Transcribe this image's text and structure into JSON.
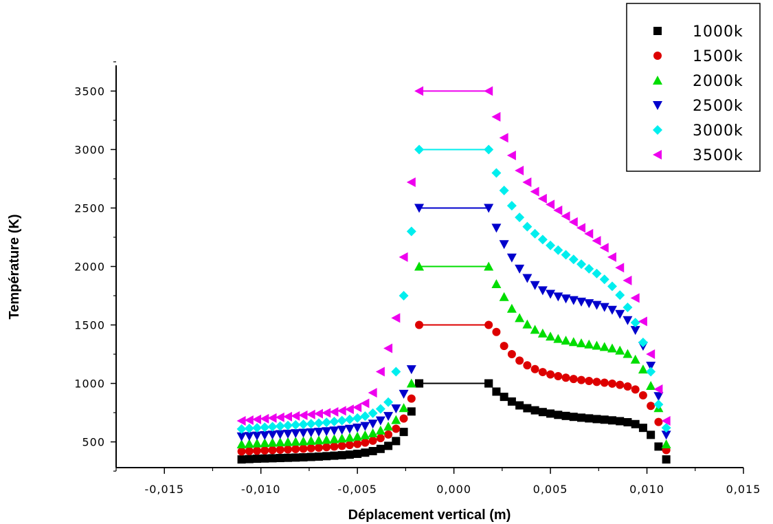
{
  "chart_data": {
    "type": "scatter",
    "title": "",
    "xlabel": "Déplacement vertical (m)",
    "ylabel": "Température (K)",
    "xlim": [
      -0.0175,
      0.015
    ],
    "ylim": [
      280,
      3720
    ],
    "x_ticks": [
      -0.015,
      -0.01,
      -0.005,
      0.0,
      0.005,
      0.01,
      0.015
    ],
    "x_tick_labels": [
      "-0,015",
      "-0,010",
      "-0,005",
      "0,000",
      "0,005",
      "0,010",
      "0,015"
    ],
    "y_ticks": [
      500,
      1000,
      1500,
      2000,
      2500,
      3000,
      3500
    ],
    "y_tick_labels": [
      "500",
      "1000",
      "1500",
      "2000",
      "2500",
      "3000",
      "3500"
    ],
    "grid": false,
    "legend_position": "top-right",
    "series": [
      {
        "name": "1000k",
        "marker": "square",
        "color": "#000000",
        "x": [
          -0.011,
          -0.0106,
          -0.0102,
          -0.0098,
          -0.0094,
          -0.009,
          -0.0086,
          -0.0082,
          -0.0078,
          -0.0074,
          -0.007,
          -0.0066,
          -0.0062,
          -0.0058,
          -0.0054,
          -0.005,
          -0.0046,
          -0.0042,
          -0.0038,
          -0.0034,
          -0.003,
          -0.0026,
          -0.0022,
          -0.0018,
          0.0018,
          0.0022,
          0.0026,
          0.003,
          0.0034,
          0.0038,
          0.0042,
          0.0046,
          0.005,
          0.0054,
          0.0058,
          0.0062,
          0.0066,
          0.007,
          0.0074,
          0.0078,
          0.0082,
          0.0086,
          0.009,
          0.0094,
          0.0098,
          0.0102,
          0.0106,
          0.011
        ],
        "y": [
          350,
          353,
          356,
          358,
          360,
          362,
          364,
          366,
          368,
          371,
          374,
          378,
          382,
          386,
          391,
          398,
          408,
          421,
          440,
          466,
          507,
          585,
          760,
          1000,
          1000,
          930,
          885,
          845,
          812,
          788,
          770,
          755,
          742,
          731,
          722,
          714,
          707,
          701,
          695,
          690,
          684,
          677,
          668,
          652,
          620,
          560,
          460,
          350
        ]
      },
      {
        "name": "1500k",
        "marker": "circle",
        "color": "#dd0000",
        "x": [
          -0.011,
          -0.0106,
          -0.0102,
          -0.0098,
          -0.0094,
          -0.009,
          -0.0086,
          -0.0082,
          -0.0078,
          -0.0074,
          -0.007,
          -0.0066,
          -0.0062,
          -0.0058,
          -0.0054,
          -0.005,
          -0.0046,
          -0.0042,
          -0.0038,
          -0.0034,
          -0.003,
          -0.0026,
          -0.0022,
          0.0022,
          0.0026,
          0.003,
          0.0034,
          0.0038,
          0.0042,
          0.0046,
          0.005,
          0.0054,
          0.0058,
          0.0062,
          0.0066,
          0.007,
          0.0074,
          0.0078,
          0.0082,
          0.0086,
          0.009,
          0.0094,
          0.0098,
          0.0102,
          0.0106,
          0.011
        ],
        "y": [
          418,
          421,
          424,
          427,
          430,
          433,
          436,
          439,
          442,
          446,
          450,
          455,
          460,
          466,
          473,
          482,
          494,
          510,
          532,
          563,
          612,
          700,
          870,
          1440,
          1320,
          1250,
          1195,
          1155,
          1122,
          1097,
          1077,
          1062,
          1049,
          1038,
          1029,
          1021,
          1013,
          1006,
          998,
          988,
          974,
          948,
          898,
          808,
          670,
          430
        ]
      },
      {
        "name": "2000k",
        "marker": "triangle-up",
        "color": "#00dd00",
        "x": [
          -0.011,
          -0.0106,
          -0.0102,
          -0.0098,
          -0.0094,
          -0.009,
          -0.0086,
          -0.0082,
          -0.0078,
          -0.0074,
          -0.007,
          -0.0066,
          -0.0062,
          -0.0058,
          -0.0054,
          -0.005,
          -0.0046,
          -0.0042,
          -0.0038,
          -0.0034,
          -0.003,
          -0.0026,
          -0.0022,
          0.0022,
          0.0026,
          0.003,
          0.0034,
          0.0038,
          0.0042,
          0.0046,
          0.005,
          0.0054,
          0.0058,
          0.0062,
          0.0066,
          0.007,
          0.0074,
          0.0078,
          0.0082,
          0.0086,
          0.009,
          0.0094,
          0.0098,
          0.0102,
          0.0106,
          0.011
        ],
        "y": [
          480,
          484,
          488,
          491,
          494,
          497,
          500,
          503,
          506,
          510,
          514,
          519,
          524,
          530,
          537,
          546,
          558,
          575,
          598,
          632,
          688,
          790,
          1000,
          1850,
          1740,
          1640,
          1560,
          1505,
          1460,
          1428,
          1402,
          1382,
          1367,
          1355,
          1344,
          1334,
          1324,
          1313,
          1300,
          1282,
          1253,
          1205,
          1120,
          980,
          790,
          480
        ]
      },
      {
        "name": "2500k",
        "marker": "triangle-down",
        "color": "#0000cc",
        "x": [
          -0.011,
          -0.0106,
          -0.0102,
          -0.0098,
          -0.0094,
          -0.009,
          -0.0086,
          -0.0082,
          -0.0078,
          -0.0074,
          -0.007,
          -0.0066,
          -0.0062,
          -0.0058,
          -0.0054,
          -0.005,
          -0.0046,
          -0.0042,
          -0.0038,
          -0.0034,
          -0.003,
          -0.0026,
          -0.0022,
          0.0022,
          0.0026,
          0.003,
          0.0034,
          0.0038,
          0.0042,
          0.0046,
          0.005,
          0.0054,
          0.0058,
          0.0062,
          0.0066,
          0.007,
          0.0074,
          0.0078,
          0.0082,
          0.0086,
          0.009,
          0.0094,
          0.0098,
          0.0102,
          0.0106,
          0.011
        ],
        "y": [
          545,
          549,
          553,
          557,
          561,
          565,
          569,
          573,
          577,
          581,
          585,
          590,
          596,
          603,
          611,
          621,
          635,
          655,
          682,
          720,
          785,
          910,
          1120,
          2330,
          2190,
          2075,
          1980,
          1900,
          1840,
          1795,
          1765,
          1742,
          1725,
          1711,
          1698,
          1685,
          1670,
          1652,
          1628,
          1593,
          1540,
          1455,
          1320,
          1150,
          890,
          560
        ]
      },
      {
        "name": "3000k",
        "marker": "diamond",
        "color": "#00eeee",
        "x": [
          -0.011,
          -0.0106,
          -0.0102,
          -0.0098,
          -0.0094,
          -0.009,
          -0.0086,
          -0.0082,
          -0.0078,
          -0.0074,
          -0.007,
          -0.0066,
          -0.0062,
          -0.0058,
          -0.0054,
          -0.005,
          -0.0046,
          -0.0042,
          -0.0038,
          -0.0034,
          -0.003,
          -0.0026,
          -0.0022,
          0.0022,
          0.0026,
          0.003,
          0.0034,
          0.0038,
          0.0042,
          0.0046,
          0.005,
          0.0054,
          0.0058,
          0.0062,
          0.0066,
          0.007,
          0.0074,
          0.0078,
          0.0082,
          0.0086,
          0.009,
          0.0094,
          0.0098,
          0.0102,
          0.0106,
          0.011
        ],
        "y": [
          610,
          615,
          620,
          625,
          630,
          635,
          640,
          645,
          650,
          655,
          661,
          667,
          674,
          682,
          692,
          704,
          720,
          745,
          782,
          840,
          1100,
          1750,
          2300,
          2800,
          2650,
          2520,
          2420,
          2340,
          2280,
          2230,
          2180,
          2140,
          2100,
          2060,
          2020,
          1980,
          1940,
          1890,
          1830,
          1755,
          1650,
          1520,
          1350,
          1100,
          820,
          620
        ]
      },
      {
        "name": "3500k",
        "marker": "triangle-left",
        "color": "#ee00ee",
        "x": [
          -0.011,
          -0.0106,
          -0.0102,
          -0.0098,
          -0.0094,
          -0.009,
          -0.0086,
          -0.0082,
          -0.0078,
          -0.0074,
          -0.007,
          -0.0066,
          -0.0062,
          -0.0058,
          -0.0054,
          -0.005,
          -0.0046,
          -0.0042,
          -0.0038,
          -0.0034,
          -0.003,
          -0.0026,
          -0.0022,
          0.0022,
          0.0026,
          0.003,
          0.0034,
          0.0038,
          0.0042,
          0.0046,
          0.005,
          0.0054,
          0.0058,
          0.0062,
          0.0066,
          0.007,
          0.0074,
          0.0078,
          0.0082,
          0.0086,
          0.009,
          0.0094,
          0.0098,
          0.0102,
          0.0106,
          0.011
        ],
        "y": [
          680,
          686,
          692,
          698,
          704,
          710,
          716,
          722,
          728,
          734,
          741,
          748,
          756,
          766,
          778,
          795,
          830,
          920,
          1100,
          1300,
          1560,
          2080,
          2720,
          3280,
          3100,
          2950,
          2820,
          2720,
          2640,
          2580,
          2530,
          2480,
          2430,
          2380,
          2330,
          2280,
          2220,
          2160,
          2080,
          1990,
          1880,
          1730,
          1530,
          1250,
          950,
          680
        ]
      }
    ],
    "plateaus": [
      {
        "series": "1000k",
        "x": [
          -0.0018,
          0.0018
        ],
        "y": 1000
      },
      {
        "series": "1500k",
        "x": [
          -0.0018,
          0.0018
        ],
        "y": 1500
      },
      {
        "series": "2000k",
        "x": [
          -0.0018,
          0.0018
        ],
        "y": 2000
      },
      {
        "series": "2500k",
        "x": [
          -0.0018,
          0.0018
        ],
        "y": 2500
      },
      {
        "series": "3000k",
        "x": [
          -0.0018,
          0.0018
        ],
        "y": 3000
      },
      {
        "series": "3500k",
        "x": [
          -0.0018,
          0.0018
        ],
        "y": 3500
      }
    ]
  }
}
